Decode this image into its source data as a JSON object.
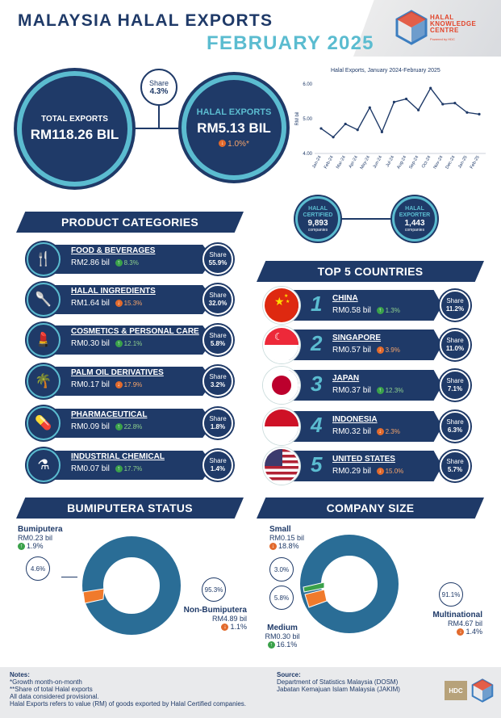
{
  "header": {
    "title_line1": "MALAYSIA HALAL EXPORTS",
    "title_line2": "FEBRUARY 2025",
    "logo_text": "HALAL KNOWLEDGE CENTRE",
    "logo_sub": "Powered by HDC"
  },
  "summary": {
    "total_label": "TOTAL EXPORTS",
    "total_value": "RM118.26 BIL",
    "share_label": "Share",
    "share_value": "4.3%",
    "halal_label": "HALAL EXPORTS",
    "halal_value": "RM5.13 BIL",
    "halal_growth": "1.0%*",
    "halal_growth_dir": "down"
  },
  "chart_data": {
    "type": "line",
    "title": "Halal Exports, January 2024-February 2025",
    "ylabel": "RM bil",
    "xlabel": "",
    "ylim": [
      4.0,
      6.0
    ],
    "yticks": [
      "4.00",
      "5.00",
      "6.00"
    ],
    "categories": [
      "Jan-24",
      "Feb-24",
      "Mar-24",
      "Apr-24",
      "May-24",
      "Jun-24",
      "Jul-24",
      "Aug-24",
      "Sep-24",
      "Oct-24",
      "Nov-24",
      "Dec-24",
      "Jan-25",
      "Feb-25"
    ],
    "values": [
      4.72,
      4.47,
      4.85,
      4.68,
      5.32,
      4.62,
      5.48,
      5.57,
      5.25,
      5.88,
      5.42,
      5.45,
      5.18,
      5.13
    ],
    "color": "#1f3a68",
    "grid": false
  },
  "badges": {
    "certified_label": "HALAL CERTIFIED",
    "certified_value": "9,893",
    "certified_unit": "companies",
    "exporter_label": "HALAL EXPORTER",
    "exporter_value": "1,443",
    "exporter_unit": "companies"
  },
  "product_categories": {
    "title": "PRODUCT CATEGORIES",
    "share_word": "Share",
    "items": [
      {
        "name": "FOOD & BEVERAGES",
        "value": "RM2.86 bil",
        "growth": "8.3%",
        "dir": "up",
        "share": "55.9%",
        "icon": "food-beverage-icon"
      },
      {
        "name": "HALAL INGREDIENTS",
        "value": "RM1.64 bil",
        "growth": "15.3%",
        "dir": "down",
        "share": "32.0%",
        "icon": "ingredients-spoon-icon"
      },
      {
        "name": "COSMETICS & PERSONAL CARE",
        "value": "RM0.30 bil",
        "growth": "12.1%",
        "dir": "up",
        "share": "5.8%",
        "icon": "cosmetics-icon"
      },
      {
        "name": "PALM OIL DERIVATIVES",
        "value": "RM0.17 bil",
        "growth": "17.9%",
        "dir": "down",
        "share": "3.2%",
        "icon": "palm-tree-icon"
      },
      {
        "name": "PHARMACEUTICAL",
        "value": "RM0.09 bil",
        "growth": "22.8%",
        "dir": "up",
        "share": "1.8%",
        "icon": "pharmaceutical-icon"
      },
      {
        "name": "INDUSTRIAL CHEMICAL",
        "value": "RM0.07 bil",
        "growth": "17.7%",
        "dir": "up",
        "share": "1.4%",
        "icon": "flask-icon"
      }
    ]
  },
  "top_countries": {
    "title": "TOP 5 COUNTRIES",
    "share_word": "Share",
    "items": [
      {
        "rank": "1",
        "name": "CHINA",
        "value": "RM0.58 bil",
        "growth": "1.3%",
        "dir": "up",
        "share": "11.2%",
        "flag": "china-flag-icon"
      },
      {
        "rank": "2",
        "name": "SINGAPORE",
        "value": "RM0.57 bil",
        "growth": "3.9%",
        "dir": "down",
        "share": "11.0%",
        "flag": "singapore-flag-icon"
      },
      {
        "rank": "3",
        "name": "JAPAN",
        "value": "RM0.37 bil",
        "growth": "12.3%",
        "dir": "up",
        "share": "7.1%",
        "flag": "japan-flag-icon"
      },
      {
        "rank": "4",
        "name": "INDONESIA",
        "value": "RM0.32 bil",
        "growth": "2.3%",
        "dir": "down",
        "share": "6.3%",
        "flag": "indonesia-flag-icon"
      },
      {
        "rank": "5",
        "name": "UNITED STATES",
        "value": "RM0.29 bil",
        "growth": "15.0%",
        "dir": "down",
        "share": "5.7%",
        "flag": "usa-flag-icon"
      }
    ]
  },
  "bumiputera": {
    "title": "BUMIPUTERA STATUS",
    "bumi_label": "Bumiputera",
    "bumi_value": "RM0.23 bil",
    "bumi_growth": "1.9%",
    "bumi_dir": "up",
    "bumi_pct": "4.6%",
    "non_label": "Non-Bumiputera",
    "non_value": "RM4.89 bil",
    "non_growth": "1.1%",
    "non_dir": "down",
    "non_pct": "95.3%",
    "colors": {
      "main": "#2a6d96",
      "minor": "#f07a2c"
    }
  },
  "company_size": {
    "title": "COMPANY SIZE",
    "small_label": "Small",
    "small_value": "RM0.15 bil",
    "small_growth": "18.8%",
    "small_dir": "down",
    "small_pct": "3.0%",
    "medium_label": "Medium",
    "medium_value": "RM0.30 bil",
    "medium_growth": "16.1%",
    "medium_dir": "up",
    "medium_pct": "5.8%",
    "multi_label": "Multinational",
    "multi_value": "RM4.67 bil",
    "multi_growth": "1.4%",
    "multi_dir": "down",
    "multi_pct": "91.1%",
    "colors": {
      "main": "#2a6d96",
      "small": "#3aa14a",
      "medium": "#f07a2c"
    }
  },
  "footer": {
    "notes_title": "Notes:",
    "notes": [
      "*Growth month-on-month",
      "**Share of total Halal exports",
      "All data considered provisional.",
      "Halal Exports refers to value (RM) of goods exported by Halal Certified companies."
    ],
    "source_title": "Source:",
    "sources": [
      "Department of Statistics Malaysia (DOSM)",
      "Jabatan Kemajuan Islam Malaysia (JAKIM)"
    ],
    "hdc_logo_text": "HDC"
  }
}
